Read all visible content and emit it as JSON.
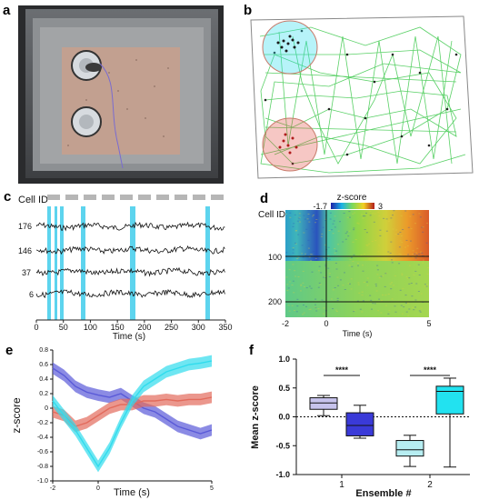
{
  "panel_labels": {
    "a": "a",
    "b": "b",
    "c": "c",
    "d": "d",
    "e": "e",
    "f": "f"
  },
  "colors": {
    "track": "#3cc84b",
    "cyan": "#30dced",
    "blue_shade": "#5a5ad8",
    "red_shade": "#e26b5c",
    "box_light_purple": "#c7c3ec",
    "box_blue": "#3a3ad8",
    "box_light_cyan": "#b7eef2",
    "box_cyan": "#22e2f0",
    "highlight_band": "#27c6e8"
  },
  "panel_c": {
    "y_title": "Cell ID",
    "cell_labels": [
      "176",
      "146",
      "37",
      "6"
    ],
    "x_ticks": [
      "0",
      "50",
      "100",
      "150",
      "200",
      "250",
      "300",
      "350"
    ],
    "x_title": "Time (s)"
  },
  "panel_d": {
    "colorbar_title": "z-score",
    "colorbar_min": "-1.7",
    "colorbar_max": "3",
    "y_title": "Cell ID",
    "y_ticks": [
      "100",
      "200"
    ],
    "x_ticks": [
      "-2",
      "0",
      "5"
    ],
    "x_title": "Time (s)"
  },
  "chart_data": [
    {
      "type": "line",
      "panel": "e",
      "ylabel": "z-score",
      "xlabel": "Time (s)",
      "xlim": [
        -2,
        5
      ],
      "ylim": [
        -1.0,
        0.8
      ],
      "x_ticks": [
        "-2",
        "0",
        "5"
      ],
      "y_ticks": [
        "0.8",
        "0.6",
        "0.4",
        "0.2",
        "0",
        "-0.2",
        "-0.4",
        "-0.6",
        "-0.8",
        "-1.0"
      ],
      "x": [
        -2,
        -1.5,
        -1,
        -0.5,
        0,
        0.5,
        1,
        1.5,
        2,
        2.5,
        3,
        3.5,
        4,
        4.5,
        5
      ],
      "series": [
        {
          "color": "blue",
          "values": [
            0.55,
            0.45,
            0.3,
            0.22,
            0.18,
            0.15,
            0.2,
            0.1,
            0.0,
            -0.05,
            -0.15,
            -0.25,
            -0.3,
            -0.35,
            -0.3
          ]
        },
        {
          "color": "red",
          "values": [
            -0.05,
            -0.1,
            -0.25,
            -0.2,
            -0.1,
            0.0,
            0.05,
            0.05,
            0.1,
            0.1,
            0.12,
            0.1,
            0.12,
            0.12,
            0.15
          ]
        },
        {
          "color": "cyan",
          "values": [
            0.1,
            -0.1,
            -0.3,
            -0.55,
            -0.8,
            -0.55,
            -0.2,
            0.1,
            0.3,
            0.4,
            0.5,
            0.55,
            0.6,
            0.62,
            0.65
          ]
        }
      ]
    },
    {
      "type": "box",
      "panel": "f",
      "ylabel": "Mean z-score",
      "xlabel": "Ensemble #",
      "ylim": [
        -1.0,
        1.0
      ],
      "y_ticks": [
        "1.0",
        "0.5",
        "0.0",
        "-0.5",
        "-1.0"
      ],
      "categories": [
        "1",
        "2"
      ],
      "boxes": [
        {
          "group": "1",
          "color": "box_light_purple",
          "min": 0.02,
          "q1": 0.13,
          "median": 0.24,
          "q3": 0.33,
          "max": 0.37
        },
        {
          "group": "1",
          "color": "box_blue",
          "min": -0.37,
          "q1": -0.33,
          "median": -0.15,
          "q3": 0.07,
          "max": 0.2
        },
        {
          "group": "2",
          "color": "box_light_cyan",
          "min": -0.86,
          "q1": -0.68,
          "median": -0.57,
          "q3": -0.41,
          "max": -0.32
        },
        {
          "group": "2",
          "color": "box_cyan",
          "min": -0.87,
          "q1": 0.05,
          "median": 0.44,
          "q3": 0.53,
          "max": 0.67
        }
      ],
      "significance": [
        "****",
        "****"
      ]
    }
  ]
}
